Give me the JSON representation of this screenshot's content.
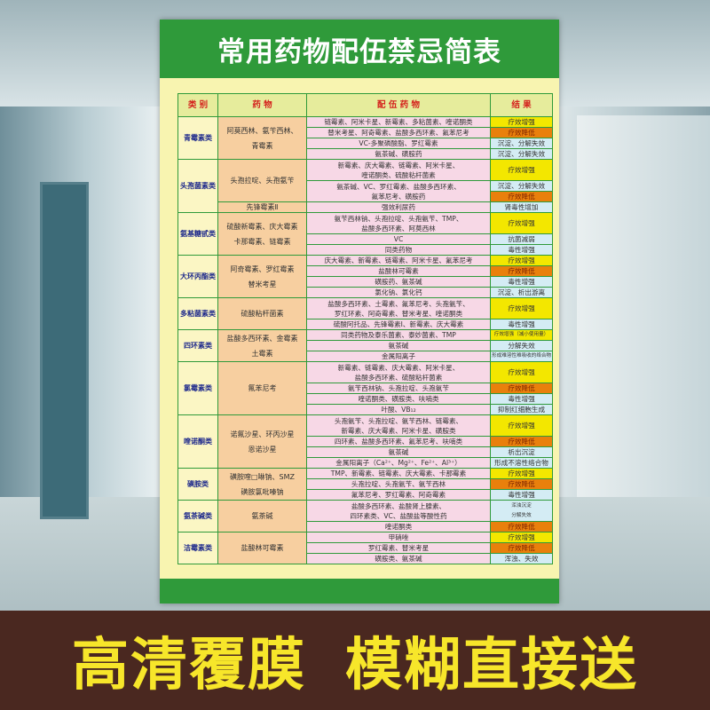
{
  "title": "常用药物配伍禁忌简表",
  "headers": [
    "类 别",
    "药 物",
    "配 伍 药 物",
    "结 果"
  ],
  "result_colors": {
    "yellow": "#f3e700",
    "orange": "#e9800c",
    "blue": "#d4ecf4"
  },
  "groups": [
    {
      "category": "青霉素类",
      "drugs": [
        {
          "name": "阿莫西林、氨苄西林、\n青霉素",
          "rows": [
            {
              "combo": "链霉素、阿米卡星、新霉素、多粘菌素、喹诺酮类",
              "results": [
                {
                  "text": "疗效增强",
                  "type": "yellow"
                }
              ]
            },
            {
              "combo": "替米考星、阿奇霉素、盐酸多西环素、氟苯尼考",
              "results": [
                {
                  "text": "疗效降低",
                  "type": "orange"
                }
              ]
            },
            {
              "combo": "VC-多聚磷酸脂、罗红霉素",
              "results": [
                {
                  "text": "沉淀、分解失效",
                  "type": "blue"
                }
              ]
            },
            {
              "combo": "氨茶碱、磺胺药",
              "results": [
                {
                  "text": "沉淀、分解失效",
                  "type": "blue"
                }
              ]
            }
          ]
        }
      ]
    },
    {
      "category": "头孢菌素类",
      "drugs": [
        {
          "name": "头孢拉啶、头孢氨苄",
          "rows": [
            {
              "combo": "新霉素、庆大霉素、链霉素、阿米卡星、\n喹诺酮类、硫酸粘杆菌素",
              "results": [
                {
                  "text": "疗效增强",
                  "type": "yellow"
                }
              ]
            },
            {
              "combo": "氨茶碱、VC、罗红霉素、盐酸多西环素、\n氟苯尼考、磺胺药",
              "results": [
                {
                  "text": "沉淀、分解失效",
                  "type": "blue"
                },
                {
                  "text": "疗效降低",
                  "type": "orange"
                }
              ]
            }
          ]
        },
        {
          "name": "先锋霉素Ⅱ",
          "rows": [
            {
              "combo": "强效利尿药",
              "results": [
                {
                  "text": "肾毒性增加",
                  "type": "blue"
                }
              ]
            }
          ]
        }
      ]
    },
    {
      "category": "氨基糖甙类",
      "drugs": [
        {
          "name": "硫酸新霉素、庆大霉素\n卡那霉素、链霉素",
          "rows": [
            {
              "combo": "氨苄西林钠、头孢拉啶、头孢氨苄、TMP、\n盐酸多西环素、阿莫西林",
              "results": [
                {
                  "text": "疗效增强",
                  "type": "yellow"
                }
              ]
            },
            {
              "combo": "VC",
              "results": [
                {
                  "text": "抗菌减弱",
                  "type": "blue"
                }
              ]
            },
            {
              "combo": "同类药物",
              "results": [
                {
                  "text": "毒性增强",
                  "type": "blue"
                }
              ]
            }
          ]
        }
      ]
    },
    {
      "category": "大环丙酯类",
      "drugs": [
        {
          "name": "阿奇霉素、罗红霉素\n替米考星",
          "rows": [
            {
              "combo": "庆大霉素、新霉素、链霉素、阿米卡星、氟苯尼考",
              "results": [
                {
                  "text": "疗效增强",
                  "type": "yellow"
                }
              ]
            },
            {
              "combo": "盐酸林可霉素",
              "results": [
                {
                  "text": "疗效降低",
                  "type": "orange"
                }
              ]
            },
            {
              "combo": "磺胺药、氨茶碱",
              "results": [
                {
                  "text": "毒性增强",
                  "type": "blue"
                }
              ]
            },
            {
              "combo": "氯化钠、氯化钙",
              "results": [
                {
                  "text": "沉淀、析出游离",
                  "type": "blue"
                }
              ]
            }
          ]
        }
      ]
    },
    {
      "category": "多粘菌素类",
      "drugs": [
        {
          "name": "硫酸粘杆菌素",
          "rows": [
            {
              "combo": "盐酸多西环素、土霉素、氟苯尼考、头孢氨苄、\n罗红环素、阿奇霉素、替米考星、喹诺酮类",
              "results": [
                {
                  "text": "疗效增强",
                  "type": "yellow"
                }
              ]
            },
            {
              "combo": "硫酸阿托品、先锋霉素Ⅰ、新霉素、庆大霉素",
              "results": [
                {
                  "text": "毒性增强",
                  "type": "blue"
                }
              ]
            }
          ]
        }
      ]
    },
    {
      "category": "四环素类",
      "drugs": [
        {
          "name": "盐酸多西环素、金霉素\n土霉素",
          "rows": [
            {
              "combo": "同类药物及泰乐菌素、泰妙菌素、TMP",
              "results": [
                {
                  "text": "疗效增强（减小使用量）",
                  "type": "yellow"
                }
              ]
            },
            {
              "combo": "氨茶碱",
              "results": [
                {
                  "text": "分解失效",
                  "type": "blue"
                }
              ]
            },
            {
              "combo": "金属阳离子",
              "results": [
                {
                  "text": "形成难溶性难吸收的络合物",
                  "type": "blue"
                }
              ]
            }
          ]
        }
      ]
    },
    {
      "category": "氯霉素类",
      "drugs": [
        {
          "name": "氟苯尼考",
          "rows": [
            {
              "combo": "新霉素、链霉素、庆大霉素、阿米卡星、\n盐酸多西环素、硫酸粘杆菌素",
              "results": [
                {
                  "text": "疗效增强",
                  "type": "yellow"
                }
              ]
            },
            {
              "combo": "氨苄西林钠、头孢拉啶、头孢氨苄",
              "results": [
                {
                  "text": "疗效降低",
                  "type": "orange"
                }
              ]
            },
            {
              "combo": "喹诺酮类、磺胺类、呋喃类",
              "results": [
                {
                  "text": "毒性增强",
                  "type": "blue"
                }
              ]
            },
            {
              "combo": "叶酸、VB₁₂",
              "results": [
                {
                  "text": "抑制红细胞生成",
                  "type": "blue"
                }
              ]
            }
          ]
        }
      ]
    },
    {
      "category": "喹诺酮类",
      "drugs": [
        {
          "name": "诺氟沙星、环丙沙星\n恩诺沙星",
          "rows": [
            {
              "combo": "头孢氨苄、头孢拉啶、氨苄西林、链霉素、\n新霉素、庆大霉素、阿米卡星、磺胺类",
              "results": [
                {
                  "text": "疗效增强",
                  "type": "yellow"
                }
              ]
            },
            {
              "combo": "四环素、盐酸多西环素、氟苯尼考、呋喃类",
              "results": [
                {
                  "text": "疗效降低",
                  "type": "orange"
                }
              ]
            },
            {
              "combo": "氨茶碱",
              "results": [
                {
                  "text": "析出沉淀",
                  "type": "blue"
                }
              ]
            },
            {
              "combo": "金属阳离子（Ca²⁺、Mg²⁺、Fe²⁺、Al³⁺）",
              "results": [
                {
                  "text": "形成不溶性络合物",
                  "type": "blue"
                }
              ]
            }
          ]
        }
      ]
    },
    {
      "category": "磺胺类",
      "drugs": [
        {
          "name": "磺胺喹□啉钠、SMZ\n磺胺氯吡嗪钠",
          "rows": [
            {
              "combo": "TMP、新霉素、链霉素、庆大霉素、卡那霉素",
              "results": [
                {
                  "text": "疗效增强",
                  "type": "yellow"
                }
              ]
            },
            {
              "combo": "头孢拉啶、头孢氨苄、氨苄西林",
              "results": [
                {
                  "text": "疗效降低",
                  "type": "orange"
                }
              ]
            },
            {
              "combo": "氟苯尼考、罗红霉素、阿奇霉素",
              "results": [
                {
                  "text": "毒性增强",
                  "type": "blue"
                }
              ]
            }
          ]
        }
      ]
    },
    {
      "category": "氨茶碱类",
      "drugs": [
        {
          "name": "氨茶碱",
          "rows": [
            {
              "combo": "盐酸多西环素、盐酸肾上腺素、\n四环素类、VC、盐酸盐等酸性药",
              "results": [
                {
                  "text": "浑浊沉淀\n分解失效",
                  "type": "blue"
                }
              ]
            },
            {
              "combo": "喹诺酮类",
              "results": [
                {
                  "text": "疗效降低",
                  "type": "orange"
                }
              ]
            }
          ]
        }
      ]
    },
    {
      "category": "洁霉素类",
      "drugs": [
        {
          "name": "盐酸林可霉素",
          "rows": [
            {
              "combo": "甲硝唑",
              "results": [
                {
                  "text": "疗效增强",
                  "type": "yellow"
                }
              ]
            },
            {
              "combo": "罗红霉素、替米考星",
              "results": [
                {
                  "text": "疗效降低",
                  "type": "orange"
                }
              ]
            },
            {
              "combo": "磺胺类、氨茶碱",
              "results": [
                {
                  "text": "浑浊、失效",
                  "type": "blue"
                }
              ]
            }
          ]
        }
      ]
    }
  ],
  "banner": {
    "left": "高清覆膜",
    "right": "模糊直接送"
  }
}
